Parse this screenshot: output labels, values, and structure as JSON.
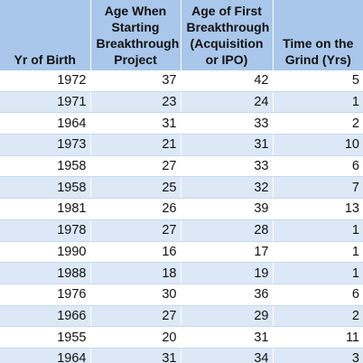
{
  "table": {
    "headers": [
      "Yr of Birth",
      "Age When Starting Breakthrough Project",
      "Age of First Breakthrough (Acquisition or IPO)",
      "Time on the Grind (Yrs)"
    ],
    "rows": [
      [
        1972,
        37,
        42,
        5
      ],
      [
        1971,
        23,
        24,
        1
      ],
      [
        1964,
        31,
        33,
        2
      ],
      [
        1973,
        21,
        31,
        10
      ],
      [
        1958,
        27,
        33,
        6
      ],
      [
        1958,
        25,
        32,
        7
      ],
      [
        1981,
        26,
        39,
        13
      ],
      [
        1978,
        27,
        28,
        1
      ],
      [
        1990,
        16,
        17,
        1
      ],
      [
        1988,
        18,
        19,
        1
      ],
      [
        1976,
        30,
        36,
        6
      ],
      [
        1966,
        27,
        29,
        2
      ],
      [
        1955,
        20,
        31,
        11
      ],
      [
        1964,
        31,
        34,
        3
      ]
    ]
  }
}
